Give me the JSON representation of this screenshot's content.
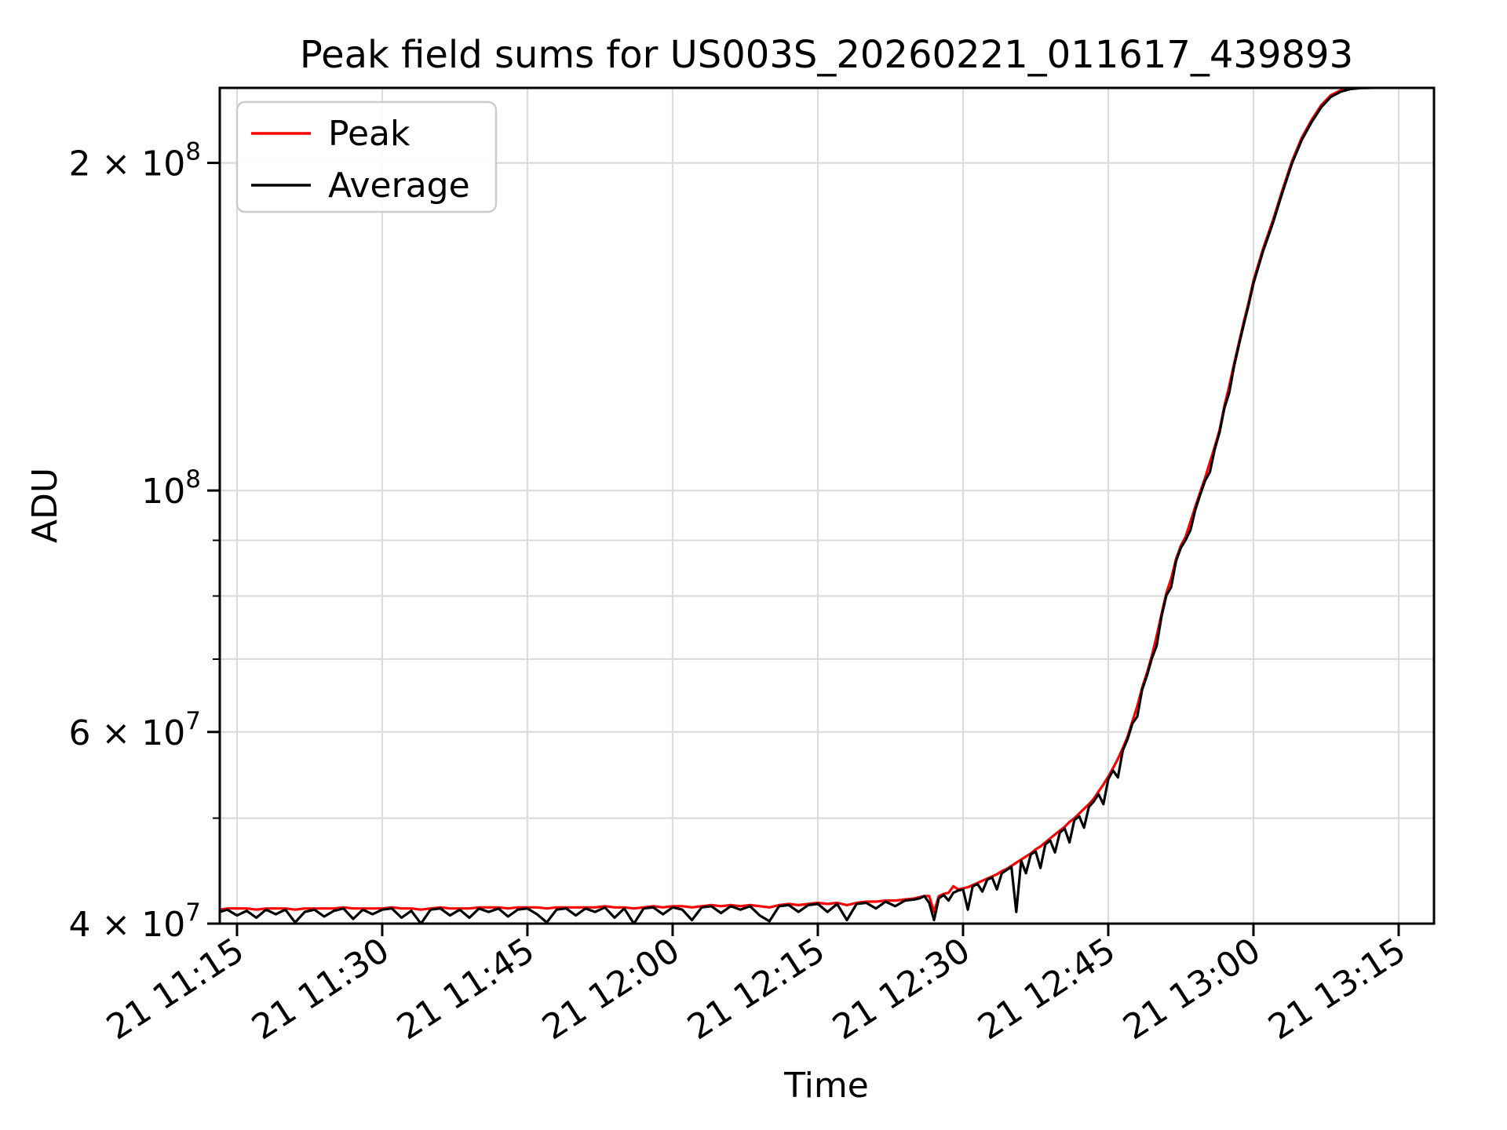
{
  "figure": {
    "background": "#ffffff"
  },
  "chart_data": {
    "type": "line",
    "title": "Peak field sums for US003S_20260221_011617_439893",
    "xlabel": "Time",
    "ylabel": "ADU",
    "yscale": "log",
    "grid": true,
    "legend_position": "upper-left",
    "colors": {
      "peak": "#ff0000",
      "average": "#000000",
      "grid": "#dcdcdc",
      "spine": "#000000",
      "legend_border": "#cccccc",
      "background": "#ffffff"
    },
    "legend": [
      {
        "label": "Peak",
        "color": "#ff0000"
      },
      {
        "label": "Average",
        "color": "#000000"
      }
    ],
    "axes": {
      "x": {
        "label": "Time",
        "unit": "minutes after 11:00 on day 21",
        "lim_minutes": [
          13.22,
          138.65
        ],
        "ticks": [
          {
            "m": 15,
            "label": "21 11:15"
          },
          {
            "m": 30,
            "label": "21 11:30"
          },
          {
            "m": 45,
            "label": "21 11:45"
          },
          {
            "m": 60,
            "label": "21 12:00"
          },
          {
            "m": 75,
            "label": "21 12:15"
          },
          {
            "m": 90,
            "label": "21 12:30"
          },
          {
            "m": 105,
            "label": "21 12:45"
          },
          {
            "m": 120,
            "label": "21 13:00"
          },
          {
            "m": 135,
            "label": "21 13:15"
          }
        ]
      },
      "y": {
        "label": "ADU",
        "scale": "log",
        "lim_adu": [
          40000000.0,
          234400000.0
        ],
        "ticks": [
          {
            "adu": 40000000.0,
            "text": "4 × 10",
            "exp": "7"
          },
          {
            "adu": 60000000.0,
            "text": "6 × 10",
            "exp": "7"
          },
          {
            "adu": 100000000.0,
            "text": "10",
            "exp": "8"
          },
          {
            "adu": 200000000.0,
            "text": "2 × 10",
            "exp": "8"
          }
        ],
        "minor_ticks_adu": [
          50000000.0,
          70000000.0,
          80000000.0,
          90000000.0
        ],
        "gridlines_adu": [
          50000000.0,
          60000000.0,
          70000000.0,
          80000000.0,
          90000000.0,
          100000000.0,
          200000000.0
        ]
      }
    },
    "value_note": "series values stored in millions of ADU (multiply by 1e6)",
    "x_minutes": [
      13.22,
      14,
      15,
      16,
      17,
      18,
      19,
      20,
      21,
      22,
      23,
      24,
      25,
      26,
      27,
      28,
      29,
      30,
      31,
      32,
      33,
      34,
      35,
      36,
      37,
      38,
      39,
      40,
      41,
      42,
      43,
      44,
      45,
      46,
      47,
      48,
      49,
      50,
      51,
      52,
      53,
      54,
      55,
      56,
      57,
      58,
      59,
      60,
      61,
      62,
      63,
      64,
      65,
      66,
      67,
      68,
      69,
      70,
      71,
      72,
      73,
      74,
      75,
      76,
      77,
      78,
      79,
      80,
      81,
      82,
      83,
      84,
      85,
      85.5,
      86,
      86.5,
      87,
      87.5,
      88,
      88.5,
      89,
      89.5,
      90,
      90.5,
      91,
      91.5,
      92,
      92.5,
      93,
      93.5,
      94,
      94.5,
      95,
      95.5,
      96,
      96.5,
      97,
      97.5,
      98,
      98.5,
      99,
      99.5,
      100,
      100.5,
      101,
      101.5,
      102,
      102.5,
      103,
      103.5,
      104,
      104.5,
      105,
      105.5,
      106,
      106.5,
      107,
      107.5,
      108,
      108.5,
      109,
      109.5,
      110,
      110.5,
      111,
      111.5,
      112,
      112.5,
      113,
      113.5,
      114,
      114.5,
      115,
      115.5,
      116,
      116.5,
      117,
      117.5,
      118,
      118.5,
      119,
      119.5,
      120,
      121,
      122,
      123,
      124,
      125,
      126,
      127,
      128,
      129,
      130,
      131,
      132,
      133.5,
      135,
      136.5,
      138.65
    ],
    "series": [
      {
        "name": "Peak",
        "color": "#ff0000",
        "adu_millions": [
          41.2,
          41.3,
          41.3,
          41.3,
          41.2,
          41.3,
          41.3,
          41.3,
          41.2,
          41.3,
          41.3,
          41.3,
          41.3,
          41.4,
          41.3,
          41.3,
          41.3,
          41.3,
          41.4,
          41.3,
          41.3,
          41.2,
          41.3,
          41.4,
          41.3,
          41.3,
          41.3,
          41.4,
          41.4,
          41.4,
          41.3,
          41.4,
          41.4,
          41.4,
          41.3,
          41.4,
          41.4,
          41.4,
          41.4,
          41.4,
          41.5,
          41.4,
          41.4,
          41.3,
          41.4,
          41.5,
          41.4,
          41.5,
          41.5,
          41.4,
          41.5,
          41.6,
          41.5,
          41.6,
          41.5,
          41.6,
          41.5,
          41.4,
          41.6,
          41.7,
          41.6,
          41.7,
          41.8,
          41.7,
          41.8,
          41.6,
          41.8,
          41.9,
          41.9,
          42.0,
          42.0,
          42.1,
          42.2,
          42.3,
          42.4,
          42.4,
          41.0,
          42.4,
          42.6,
          42.7,
          43.3,
          43.0,
          43.1,
          43.2,
          43.4,
          43.6,
          43.8,
          44.0,
          44.2,
          44.4,
          44.7,
          44.9,
          45.2,
          45.5,
          45.8,
          46.1,
          46.4,
          46.8,
          47.1,
          47.5,
          47.9,
          48.3,
          48.7,
          49.1,
          49.6,
          50.0,
          50.5,
          51.0,
          51.5,
          52.1,
          52.9,
          53.7,
          54.6,
          55.6,
          56.7,
          58.0,
          59.4,
          61.4,
          63.4,
          65.9,
          68.0,
          70.5,
          73.5,
          77.0,
          80.5,
          83.0,
          86.5,
          89.0,
          90.7,
          93.7,
          96.7,
          99.7,
          102.7,
          106.2,
          109.7,
          113.7,
          119.7,
          124.8,
          130.8,
          136.8,
          142.9,
          148.9,
          155.9,
          166.9,
          177.0,
          189.0,
          201.0,
          211.0,
          219.0,
          226.0,
          230.8,
          233.2,
          234.3,
          234.7,
          234.8,
          234.9,
          234.9,
          234.9,
          234.9
        ]
      },
      {
        "name": "Average",
        "color": "#000000",
        "adu_millions": [
          41.0,
          41.2,
          40.7,
          41.1,
          40.5,
          41.2,
          40.8,
          41.2,
          40.1,
          41.0,
          41.2,
          40.6,
          41.1,
          41.3,
          40.4,
          41.2,
          40.8,
          41.2,
          41.3,
          40.5,
          41.1,
          40.0,
          41.2,
          41.3,
          40.7,
          41.2,
          40.5,
          41.3,
          41.0,
          41.3,
          40.6,
          41.2,
          41.3,
          40.8,
          40.1,
          41.2,
          41.3,
          40.7,
          41.3,
          41.0,
          41.4,
          40.5,
          41.3,
          40.0,
          41.3,
          41.4,
          40.8,
          41.4,
          41.2,
          40.3,
          41.4,
          41.5,
          40.9,
          41.5,
          41.2,
          41.5,
          40.7,
          40.2,
          41.5,
          41.6,
          41.0,
          41.6,
          41.7,
          41.0,
          41.7,
          40.3,
          41.7,
          41.8,
          41.3,
          41.9,
          41.5,
          42.0,
          42.1,
          42.2,
          42.4,
          41.8,
          40.3,
          42.2,
          42.5,
          42.0,
          42.7,
          42.9,
          43.0,
          41.2,
          43.3,
          43.5,
          42.8,
          43.9,
          44.1,
          43.0,
          44.5,
          44.8,
          45.1,
          41.0,
          45.7,
          44.5,
          46.3,
          46.6,
          45.0,
          47.3,
          47.7,
          46.5,
          48.5,
          48.9,
          47.5,
          49.8,
          50.2,
          49.0,
          51.2,
          51.8,
          52.6,
          51.5,
          54.3,
          55.3,
          54.5,
          57.7,
          59.1,
          61.1,
          62.0,
          65.6,
          67.6,
          70.1,
          72.0,
          76.6,
          80.1,
          81.5,
          86.1,
          88.6,
          90.1,
          92.0,
          96.1,
          99.1,
          102.1,
          104.0,
          109.1,
          113.1,
          119.1,
          123.0,
          130.1,
          136.1,
          142.1,
          148.1,
          155.0,
          166.0,
          176.0,
          188.0,
          200.0,
          210.0,
          218.0,
          225.0,
          230.0,
          232.5,
          233.8,
          234.3,
          234.4,
          234.5,
          234.5,
          234.5,
          234.5
        ]
      }
    ]
  }
}
